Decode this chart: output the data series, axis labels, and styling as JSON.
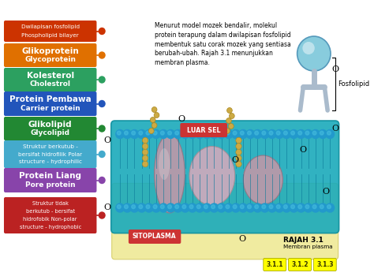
{
  "bg_color": "#ffffff",
  "legend_items": [
    {
      "label1": "Dwilapisan fosfolipid",
      "label2": "Phospholipid bilayer",
      "color": "#cc3300",
      "dot_color": "#cc3300",
      "bold": false
    },
    {
      "label1": "Glikoprotein",
      "label2": "Glycoprotein",
      "color": "#e07000",
      "dot_color": "#e07000",
      "bold": true
    },
    {
      "label1": "Kolesterol",
      "label2": "Cholestrol",
      "color": "#2ca060",
      "dot_color": "#2ca060",
      "bold": true
    },
    {
      "label1": "Protein Pembawa",
      "label2": "Carrier protein",
      "color": "#2255bb",
      "dot_color": "#2255bb",
      "bold": true
    },
    {
      "label1": "Glikolipid",
      "label2": "Glycolipid",
      "color": "#228833",
      "dot_color": "#228833",
      "bold": true
    },
    {
      "label1": "Struktur berkutub -",
      "label2": "bersifat hidrofilik Polar",
      "label3": "structure - hydrophilic",
      "color": "#44aacc",
      "dot_color": "#44aacc",
      "bold": false
    },
    {
      "label1": "Protein Liang",
      "label2": "Pore protein",
      "color": "#8844aa",
      "dot_color": "#8844aa",
      "bold": true
    },
    {
      "label1": "Struktur tidak",
      "label2": "berkutub - bersifat",
      "label3": "hidrofobik Non-polar",
      "label4": "structure - hydrophobic",
      "color": "#bb2222",
      "dot_color": "#bb2222",
      "bold": false
    }
  ],
  "paragraph": "Menurut model mozek bendalir, molekul\nprotein terapung dalam dwilapisan fosfolipid\nmembentuk satu corak mozek yang sentiasa\nberubah-ubah. Rajah 3.1 menunjukkan\nmembran plasma.",
  "luar_sel_label": "LUAR SEL",
  "sitoplasma_label": "SITOPLASMA",
  "fosfolipid_label": "Fosfolipid",
  "rajah_label": "RAJAH 3.1",
  "membran_label": "Membran plasma",
  "badges": [
    "3.1.1",
    "3.1.2",
    "3.1.3"
  ],
  "badge_color": "#ffff00",
  "badge_text_color": "#333300",
  "mem_teal": "#1aaabb",
  "mem_teal2": "#0d8f9e",
  "cytoplasm_color": "#f0eba0",
  "cytoplasm_edge": "#d8d070",
  "phospho_head_color": "#2299cc",
  "phospho_head_color2": "#44bbdd",
  "protein_color1": "#b09aaa",
  "protein_color2": "#c0aabc",
  "sugar_color": "#ccaa44",
  "ball_color": "#88ccdd",
  "ball_edge": "#5599bb",
  "stick_color": "#aabbcc"
}
